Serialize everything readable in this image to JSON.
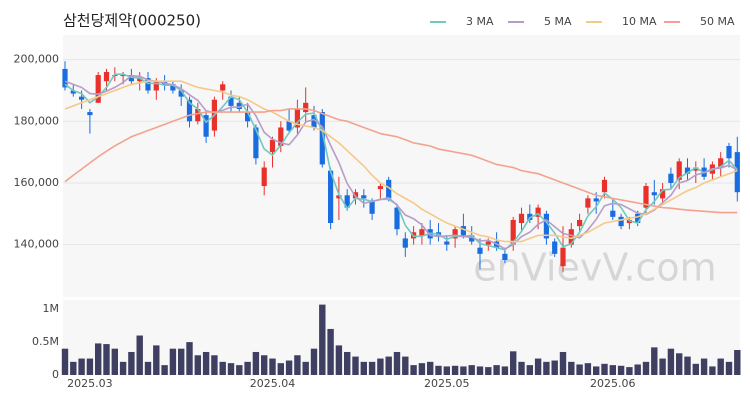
{
  "chart_data": [
    {
      "type": "candlestick",
      "title": "삼천당제약(000250)",
      "watermark": "enVievV.com",
      "up_color": "#e8312a",
      "down_color": "#1a6de0",
      "grid": true,
      "ylim": [
        123000,
        208000
      ],
      "yticks": [
        {
          "value": 140000,
          "label": "140,000"
        },
        {
          "value": 160000,
          "label": "160,000"
        },
        {
          "value": 180000,
          "label": "180,000"
        },
        {
          "value": 200000,
          "label": "200,000"
        }
      ],
      "open": [
        197000,
        190000,
        188000,
        183000,
        186000,
        193000,
        195000,
        195000,
        195000,
        193000,
        194000,
        190000,
        193000,
        192000,
        190000,
        187000,
        180000,
        182000,
        177000,
        190000,
        188000,
        186000,
        183000,
        178000,
        159000,
        170000,
        172000,
        180000,
        178000,
        183000,
        182000,
        183000,
        164000,
        155000,
        156000,
        155000,
        156000,
        154000,
        158000,
        161000,
        152000,
        142000,
        142000,
        143000,
        145000,
        144000,
        141000,
        142000,
        146000,
        143000,
        139000,
        140000,
        141000,
        137000,
        140000,
        147000,
        150000,
        149000,
        150000,
        141000,
        133000,
        140000,
        146000,
        152000,
        155000,
        157000,
        151000,
        149000,
        147000,
        150000,
        152000,
        157000,
        155000,
        163000,
        161000,
        165000,
        164000,
        165000,
        163000,
        165000,
        172000,
        170000
      ],
      "high": [
        199500,
        192000,
        190000,
        184000,
        196000,
        197000,
        197500,
        196000,
        197000,
        196000,
        196000,
        194000,
        195000,
        193000,
        192000,
        188000,
        186000,
        183000,
        188000,
        193000,
        190000,
        188000,
        186000,
        179000,
        167000,
        175000,
        180000,
        184000,
        187000,
        191000,
        185000,
        184000,
        165000,
        162000,
        158000,
        158000,
        158000,
        155000,
        160000,
        162000,
        153000,
        144000,
        146000,
        147000,
        148000,
        147000,
        143000,
        146000,
        150000,
        146000,
        142000,
        142000,
        144000,
        139000,
        149000,
        152000,
        153000,
        153000,
        151000,
        142000,
        146000,
        147000,
        150000,
        156000,
        157000,
        162000,
        155000,
        150000,
        149000,
        151000,
        160000,
        161000,
        160000,
        165000,
        168000,
        168000,
        167000,
        168000,
        167000,
        170000,
        173000,
        175000
      ],
      "low": [
        190000,
        188000,
        184000,
        176000,
        186000,
        190000,
        193000,
        192000,
        192000,
        190000,
        189000,
        187000,
        190000,
        189000,
        185000,
        178000,
        179000,
        173000,
        175000,
        187000,
        183000,
        183000,
        178000,
        166000,
        156000,
        165000,
        170000,
        176000,
        176000,
        180000,
        177000,
        165000,
        145000,
        148000,
        151000,
        153000,
        152000,
        148000,
        155000,
        154000,
        143000,
        136000,
        140000,
        140000,
        140000,
        141000,
        138000,
        139000,
        142000,
        140000,
        132000,
        138000,
        138000,
        134000,
        138000,
        144000,
        147000,
        145000,
        140000,
        136000,
        131000,
        139000,
        144000,
        150000,
        150000,
        155000,
        148000,
        145000,
        145000,
        146000,
        150000,
        153000,
        153000,
        158000,
        158000,
        161000,
        160000,
        161000,
        161000,
        162000,
        165000,
        154000
      ],
      "close": [
        191000,
        189000,
        187000,
        182000,
        195000,
        196000,
        195000,
        195000,
        193000,
        194000,
        190000,
        193000,
        192000,
        190000,
        188000,
        180000,
        184000,
        175000,
        187000,
        192000,
        185000,
        184000,
        180000,
        168000,
        165000,
        174000,
        178000,
        177000,
        184000,
        186000,
        178000,
        166000,
        147000,
        156000,
        152000,
        157000,
        155000,
        150000,
        159000,
        155000,
        145000,
        139000,
        144000,
        145000,
        142000,
        143000,
        140000,
        145000,
        143000,
        141000,
        137000,
        141000,
        139000,
        135000,
        148000,
        150000,
        148000,
        152000,
        142000,
        137000,
        139000,
        145000,
        148000,
        155000,
        154000,
        161000,
        149000,
        146000,
        148000,
        147000,
        159000,
        156000,
        158000,
        160000,
        167000,
        163000,
        165000,
        162000,
        166000,
        168000,
        168000,
        157000
      ],
      "series": [
        {
          "name": "3 MA",
          "color": "#6fc9c1",
          "values": [
            192000,
            190000,
            189000,
            186000,
            188000,
            191000,
            195300,
            195300,
            194300,
            194000,
            192300,
            192300,
            191700,
            191700,
            190000,
            186000,
            184000,
            179700,
            182000,
            184700,
            188000,
            187000,
            183000,
            177300,
            171000,
            169000,
            172300,
            176300,
            179700,
            182300,
            182700,
            176700,
            163700,
            156300,
            151700,
            155000,
            154700,
            154000,
            154700,
            154700,
            153000,
            146300,
            142700,
            142700,
            143700,
            143300,
            141700,
            142700,
            142700,
            143000,
            140300,
            139700,
            139000,
            138300,
            140700,
            144300,
            148700,
            150000,
            147300,
            143700,
            139300,
            140300,
            144000,
            149300,
            152300,
            156700,
            154700,
            152000,
            147700,
            147000,
            151300,
            154000,
            157700,
            158000,
            161700,
            163300,
            165000,
            163300,
            164300,
            165300,
            167300,
            164300
          ]
        },
        {
          "name": "5 MA",
          "color": "#b79cc8",
          "values": [
            193000,
            192000,
            191000,
            189000,
            188800,
            189800,
            191000,
            192600,
            194800,
            194600,
            193400,
            193000,
            192400,
            191800,
            190600,
            188600,
            186800,
            183400,
            182800,
            183600,
            184600,
            184600,
            185600,
            181800,
            176400,
            174200,
            173000,
            172400,
            175600,
            179800,
            180600,
            178200,
            172200,
            166600,
            159800,
            155600,
            153400,
            154000,
            154600,
            155200,
            152800,
            149600,
            148400,
            146400,
            143000,
            142600,
            142800,
            143000,
            142600,
            142400,
            141200,
            141400,
            140200,
            138600,
            140000,
            142600,
            144000,
            146600,
            148000,
            145800,
            143600,
            143000,
            142200,
            144800,
            148200,
            152600,
            153400,
            153000,
            151600,
            150200,
            149800,
            151200,
            153600,
            156000,
            160000,
            160800,
            162600,
            163400,
            164600,
            164800,
            165800,
            164200
          ]
        },
        {
          "name": "10 MA",
          "color": "#f5c887",
          "values": [
            184000,
            185000,
            186000,
            187000,
            188000,
            189000,
            190000,
            191000,
            192000,
            192500,
            193000,
            193000,
            193000,
            193000,
            193000,
            192000,
            191000,
            190500,
            190000,
            189500,
            188500,
            188000,
            187000,
            185500,
            184000,
            183000,
            181500,
            180000,
            179000,
            178500,
            178000,
            177000,
            175000,
            173000,
            170500,
            168000,
            165500,
            162500,
            160000,
            158500,
            156500,
            155000,
            153500,
            151500,
            150000,
            148500,
            147000,
            146000,
            145000,
            144000,
            143000,
            142500,
            141500,
            141000,
            141000,
            141000,
            142000,
            143000,
            143000,
            143000,
            142500,
            142000,
            143000,
            144000,
            145500,
            147000,
            147500,
            148000,
            148500,
            149000,
            150000,
            151500,
            153000,
            154500,
            156000,
            157500,
            158500,
            160000,
            161000,
            162000,
            163000,
            164000
          ]
        },
        {
          "name": "50 MA",
          "color": "#f4a28e",
          "values": [
            160400,
            162500,
            164500,
            166500,
            168500,
            170300,
            172000,
            173500,
            175000,
            176000,
            177000,
            178000,
            179000,
            180000,
            181000,
            182000,
            182500,
            183000,
            183000,
            183000,
            183000,
            183000,
            183000,
            183000,
            183000,
            183500,
            183500,
            184000,
            184000,
            184000,
            183500,
            182500,
            181500,
            180500,
            180000,
            179000,
            178000,
            177000,
            176000,
            175500,
            175000,
            174000,
            173000,
            172500,
            172000,
            171000,
            170500,
            170000,
            169500,
            169000,
            168000,
            167000,
            166000,
            165500,
            165000,
            164000,
            163500,
            163000,
            162000,
            161000,
            160000,
            159000,
            158000,
            157000,
            156000,
            155500,
            155000,
            154500,
            154000,
            153500,
            153000,
            152500,
            152000,
            151800,
            151500,
            151200,
            151000,
            150800,
            150600,
            150400,
            150400,
            150400
          ]
        }
      ]
    },
    {
      "type": "bar",
      "color": "#3f3f62",
      "ylim": [
        0,
        1140000
      ],
      "yticks": [
        0,
        {
          "value": 500000,
          "label": "0.5M"
        },
        {
          "value": 1000000,
          "label": "1M"
        }
      ],
      "categories": [
        null,
        null,
        null,
        "2025.03",
        null,
        null,
        null,
        null,
        null,
        null,
        null,
        null,
        null,
        null,
        null,
        null,
        null,
        null,
        null,
        null,
        null,
        null,
        null,
        null,
        null,
        "2025.04",
        null,
        null,
        null,
        null,
        null,
        null,
        null,
        null,
        null,
        null,
        null,
        null,
        null,
        null,
        null,
        null,
        null,
        null,
        null,
        null,
        "2025.05",
        null,
        null,
        null,
        null,
        null,
        null,
        null,
        null,
        null,
        null,
        null,
        null,
        null,
        null,
        null,
        null,
        null,
        null,
        null,
        "2025.06",
        null,
        null,
        null,
        null,
        null,
        null,
        null,
        null,
        null,
        null,
        null,
        null,
        null,
        null,
        null
      ],
      "values": [
        400000,
        200000,
        250000,
        250000,
        480000,
        470000,
        400000,
        200000,
        350000,
        600000,
        200000,
        450000,
        150000,
        400000,
        400000,
        500000,
        300000,
        350000,
        300000,
        200000,
        180000,
        150000,
        200000,
        350000,
        300000,
        250000,
        180000,
        220000,
        300000,
        200000,
        400000,
        1070000,
        700000,
        450000,
        350000,
        280000,
        200000,
        200000,
        250000,
        280000,
        350000,
        280000,
        150000,
        180000,
        200000,
        140000,
        130000,
        140000,
        130000,
        150000,
        130000,
        120000,
        150000,
        130000,
        360000,
        200000,
        150000,
        250000,
        200000,
        220000,
        350000,
        200000,
        160000,
        180000,
        130000,
        170000,
        150000,
        140000,
        120000,
        160000,
        200000,
        420000,
        250000,
        400000,
        330000,
        280000,
        170000,
        250000,
        130000,
        250000,
        200000,
        380000
      ]
    }
  ]
}
